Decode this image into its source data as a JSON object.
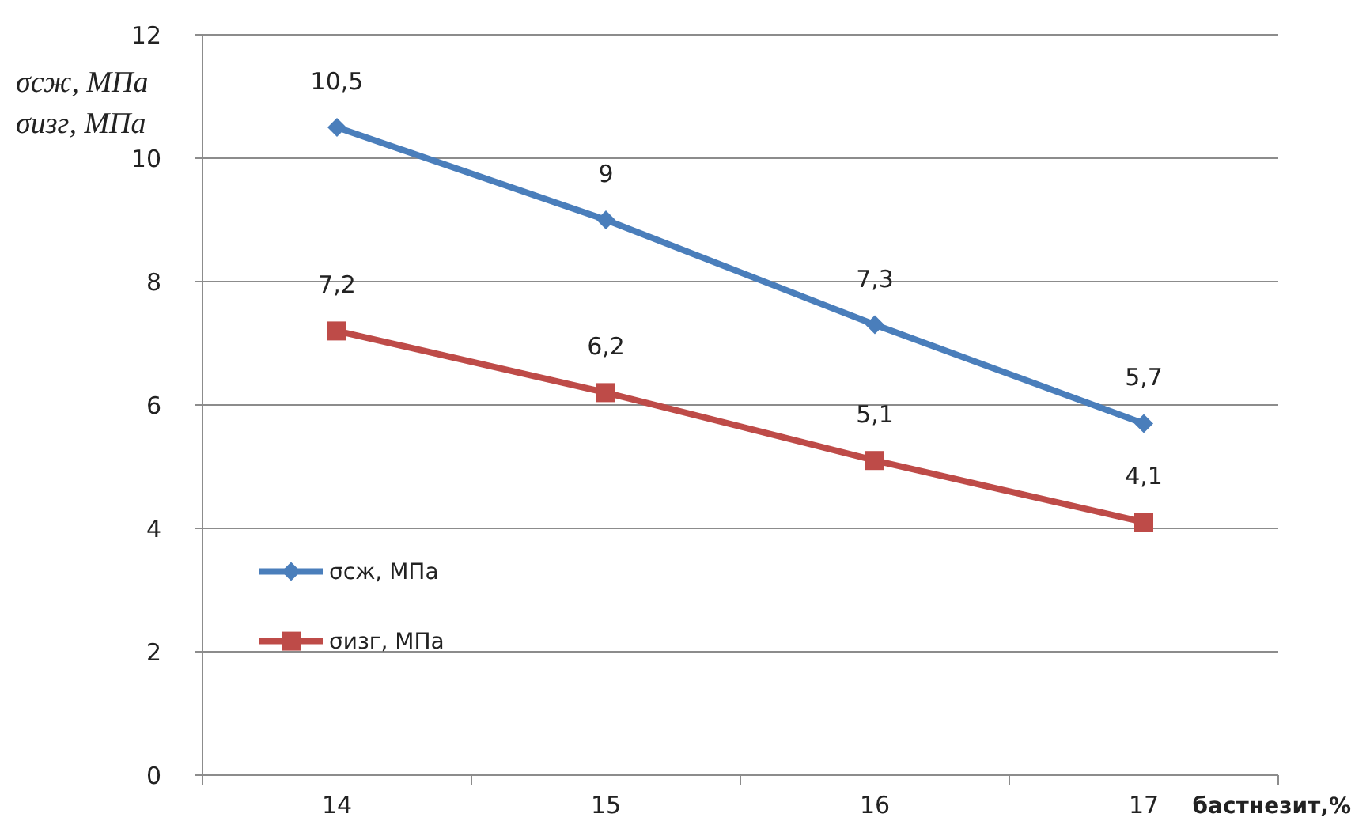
{
  "chart_data": {
    "type": "line",
    "ylabel": "σсж, МПа\nσизг, МПа",
    "xlabel": "бастнезит,%",
    "categories": [
      "14",
      "15",
      "16",
      "17"
    ],
    "ylim": [
      0,
      12
    ],
    "yticks": [
      0,
      2,
      4,
      6,
      8,
      10,
      12
    ],
    "grid": "y",
    "legend": "left",
    "series": [
      {
        "name": "σсж, МПа",
        "color": "#4a7ebb",
        "marker": "diamond",
        "values": [
          10.5,
          9,
          7.3,
          5.7
        ],
        "value_labels": [
          "10,5",
          "9",
          "7,3",
          "5,7"
        ]
      },
      {
        "name": "σизг, МПа",
        "color": "#be4b48",
        "marker": "square",
        "values": [
          7.2,
          6.2,
          5.1,
          4.1
        ],
        "value_labels": [
          "7,2",
          "6,2",
          "5,1",
          "4,1"
        ]
      }
    ]
  }
}
